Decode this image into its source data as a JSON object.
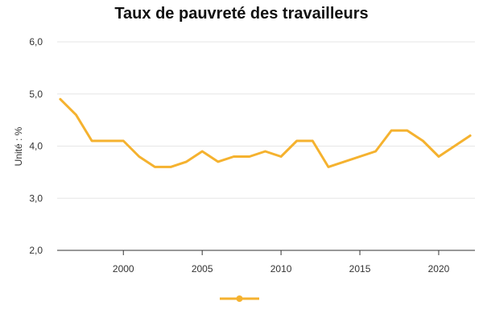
{
  "chart_data": {
    "type": "line",
    "title": "Taux de pauvreté des travailleurs",
    "xlabel": "",
    "ylabel": "Unité : %",
    "xlim": [
      1995.8,
      2022.3
    ],
    "ylim": [
      2.0,
      6.0
    ],
    "yticks": [
      2.0,
      3.0,
      4.0,
      5.0,
      6.0
    ],
    "ytick_labels": [
      "2,0",
      "3,0",
      "4,0",
      "5,0",
      "6,0"
    ],
    "xticks": [
      2000,
      2005,
      2010,
      2015,
      2020
    ],
    "xtick_labels": [
      "2000",
      "2005",
      "2010",
      "2015",
      "2020"
    ],
    "grid": true,
    "legend_position": "bottom",
    "series": [
      {
        "color": "#f5b22f",
        "points": [
          {
            "x": 1996,
            "y": 4.9
          },
          {
            "x": 1997,
            "y": 4.6
          },
          {
            "x": 1998,
            "y": 4.1
          },
          {
            "x": 1999,
            "y": 4.1
          },
          {
            "x": 2000,
            "y": 4.1
          },
          {
            "x": 2001,
            "y": 3.8
          },
          {
            "x": 2002,
            "y": 3.6
          },
          {
            "x": 2003,
            "y": 3.6
          },
          {
            "x": 2004,
            "y": 3.7
          },
          {
            "x": 2005,
            "y": 3.9
          },
          {
            "x": 2006,
            "y": 3.7
          },
          {
            "x": 2007,
            "y": 3.8
          },
          {
            "x": 2008,
            "y": 3.8
          },
          {
            "x": 2009,
            "y": 3.9
          },
          {
            "x": 2010,
            "y": 3.8
          },
          {
            "x": 2011,
            "y": 4.1
          },
          {
            "x": 2012,
            "y": 4.1
          },
          {
            "x": 2013,
            "y": 3.6
          },
          {
            "x": 2016,
            "y": 3.9
          },
          {
            "x": 2017,
            "y": 4.3
          },
          {
            "x": 2018,
            "y": 4.3
          },
          {
            "x": 2019,
            "y": 4.1
          },
          {
            "x": 2020,
            "y": 3.8
          },
          {
            "x": 2022,
            "y": 4.2
          }
        ]
      }
    ],
    "colors": {
      "line": "#f5b22f",
      "grid": "#e6e6e6",
      "axis": "#333333"
    }
  }
}
